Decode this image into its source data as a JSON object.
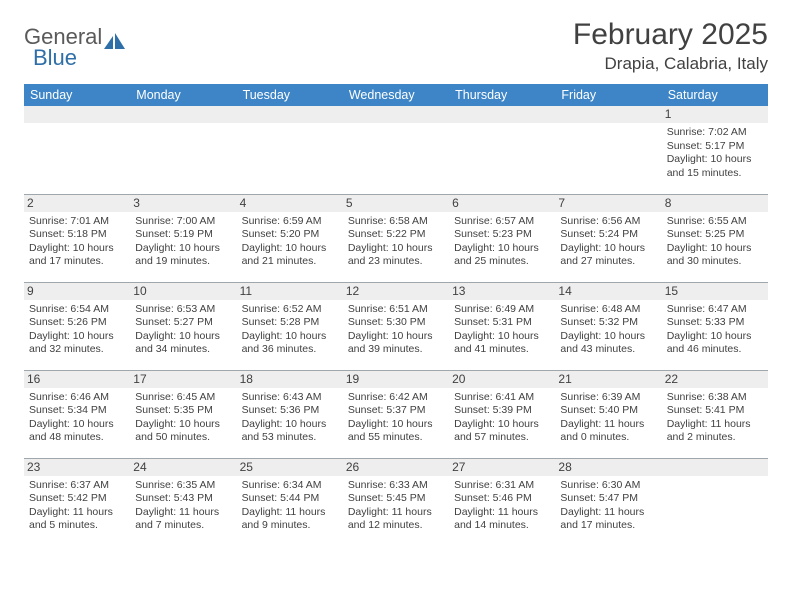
{
  "logo": {
    "text1": "General",
    "text2": "Blue"
  },
  "title": "February 2025",
  "location": "Drapia, Calabria, Italy",
  "colors": {
    "header_bg": "#3d85c6",
    "header_fg": "#ffffff",
    "daybar_bg": "#eeeeee",
    "border": "#9fa7ad",
    "text": "#414141",
    "logo_accent": "#2f6fa8"
  },
  "weekdays": [
    "Sunday",
    "Monday",
    "Tuesday",
    "Wednesday",
    "Thursday",
    "Friday",
    "Saturday"
  ],
  "weeks": [
    [
      null,
      null,
      null,
      null,
      null,
      null,
      {
        "n": "1",
        "sr": "Sunrise: 7:02 AM",
        "ss": "Sunset: 5:17 PM",
        "dl": "Daylight: 10 hours and 15 minutes."
      }
    ],
    [
      {
        "n": "2",
        "sr": "Sunrise: 7:01 AM",
        "ss": "Sunset: 5:18 PM",
        "dl": "Daylight: 10 hours and 17 minutes."
      },
      {
        "n": "3",
        "sr": "Sunrise: 7:00 AM",
        "ss": "Sunset: 5:19 PM",
        "dl": "Daylight: 10 hours and 19 minutes."
      },
      {
        "n": "4",
        "sr": "Sunrise: 6:59 AM",
        "ss": "Sunset: 5:20 PM",
        "dl": "Daylight: 10 hours and 21 minutes."
      },
      {
        "n": "5",
        "sr": "Sunrise: 6:58 AM",
        "ss": "Sunset: 5:22 PM",
        "dl": "Daylight: 10 hours and 23 minutes."
      },
      {
        "n": "6",
        "sr": "Sunrise: 6:57 AM",
        "ss": "Sunset: 5:23 PM",
        "dl": "Daylight: 10 hours and 25 minutes."
      },
      {
        "n": "7",
        "sr": "Sunrise: 6:56 AM",
        "ss": "Sunset: 5:24 PM",
        "dl": "Daylight: 10 hours and 27 minutes."
      },
      {
        "n": "8",
        "sr": "Sunrise: 6:55 AM",
        "ss": "Sunset: 5:25 PM",
        "dl": "Daylight: 10 hours and 30 minutes."
      }
    ],
    [
      {
        "n": "9",
        "sr": "Sunrise: 6:54 AM",
        "ss": "Sunset: 5:26 PM",
        "dl": "Daylight: 10 hours and 32 minutes."
      },
      {
        "n": "10",
        "sr": "Sunrise: 6:53 AM",
        "ss": "Sunset: 5:27 PM",
        "dl": "Daylight: 10 hours and 34 minutes."
      },
      {
        "n": "11",
        "sr": "Sunrise: 6:52 AM",
        "ss": "Sunset: 5:28 PM",
        "dl": "Daylight: 10 hours and 36 minutes."
      },
      {
        "n": "12",
        "sr": "Sunrise: 6:51 AM",
        "ss": "Sunset: 5:30 PM",
        "dl": "Daylight: 10 hours and 39 minutes."
      },
      {
        "n": "13",
        "sr": "Sunrise: 6:49 AM",
        "ss": "Sunset: 5:31 PM",
        "dl": "Daylight: 10 hours and 41 minutes."
      },
      {
        "n": "14",
        "sr": "Sunrise: 6:48 AM",
        "ss": "Sunset: 5:32 PM",
        "dl": "Daylight: 10 hours and 43 minutes."
      },
      {
        "n": "15",
        "sr": "Sunrise: 6:47 AM",
        "ss": "Sunset: 5:33 PM",
        "dl": "Daylight: 10 hours and 46 minutes."
      }
    ],
    [
      {
        "n": "16",
        "sr": "Sunrise: 6:46 AM",
        "ss": "Sunset: 5:34 PM",
        "dl": "Daylight: 10 hours and 48 minutes."
      },
      {
        "n": "17",
        "sr": "Sunrise: 6:45 AM",
        "ss": "Sunset: 5:35 PM",
        "dl": "Daylight: 10 hours and 50 minutes."
      },
      {
        "n": "18",
        "sr": "Sunrise: 6:43 AM",
        "ss": "Sunset: 5:36 PM",
        "dl": "Daylight: 10 hours and 53 minutes."
      },
      {
        "n": "19",
        "sr": "Sunrise: 6:42 AM",
        "ss": "Sunset: 5:37 PM",
        "dl": "Daylight: 10 hours and 55 minutes."
      },
      {
        "n": "20",
        "sr": "Sunrise: 6:41 AM",
        "ss": "Sunset: 5:39 PM",
        "dl": "Daylight: 10 hours and 57 minutes."
      },
      {
        "n": "21",
        "sr": "Sunrise: 6:39 AM",
        "ss": "Sunset: 5:40 PM",
        "dl": "Daylight: 11 hours and 0 minutes."
      },
      {
        "n": "22",
        "sr": "Sunrise: 6:38 AM",
        "ss": "Sunset: 5:41 PM",
        "dl": "Daylight: 11 hours and 2 minutes."
      }
    ],
    [
      {
        "n": "23",
        "sr": "Sunrise: 6:37 AM",
        "ss": "Sunset: 5:42 PM",
        "dl": "Daylight: 11 hours and 5 minutes."
      },
      {
        "n": "24",
        "sr": "Sunrise: 6:35 AM",
        "ss": "Sunset: 5:43 PM",
        "dl": "Daylight: 11 hours and 7 minutes."
      },
      {
        "n": "25",
        "sr": "Sunrise: 6:34 AM",
        "ss": "Sunset: 5:44 PM",
        "dl": "Daylight: 11 hours and 9 minutes."
      },
      {
        "n": "26",
        "sr": "Sunrise: 6:33 AM",
        "ss": "Sunset: 5:45 PM",
        "dl": "Daylight: 11 hours and 12 minutes."
      },
      {
        "n": "27",
        "sr": "Sunrise: 6:31 AM",
        "ss": "Sunset: 5:46 PM",
        "dl": "Daylight: 11 hours and 14 minutes."
      },
      {
        "n": "28",
        "sr": "Sunrise: 6:30 AM",
        "ss": "Sunset: 5:47 PM",
        "dl": "Daylight: 11 hours and 17 minutes."
      },
      null
    ]
  ]
}
